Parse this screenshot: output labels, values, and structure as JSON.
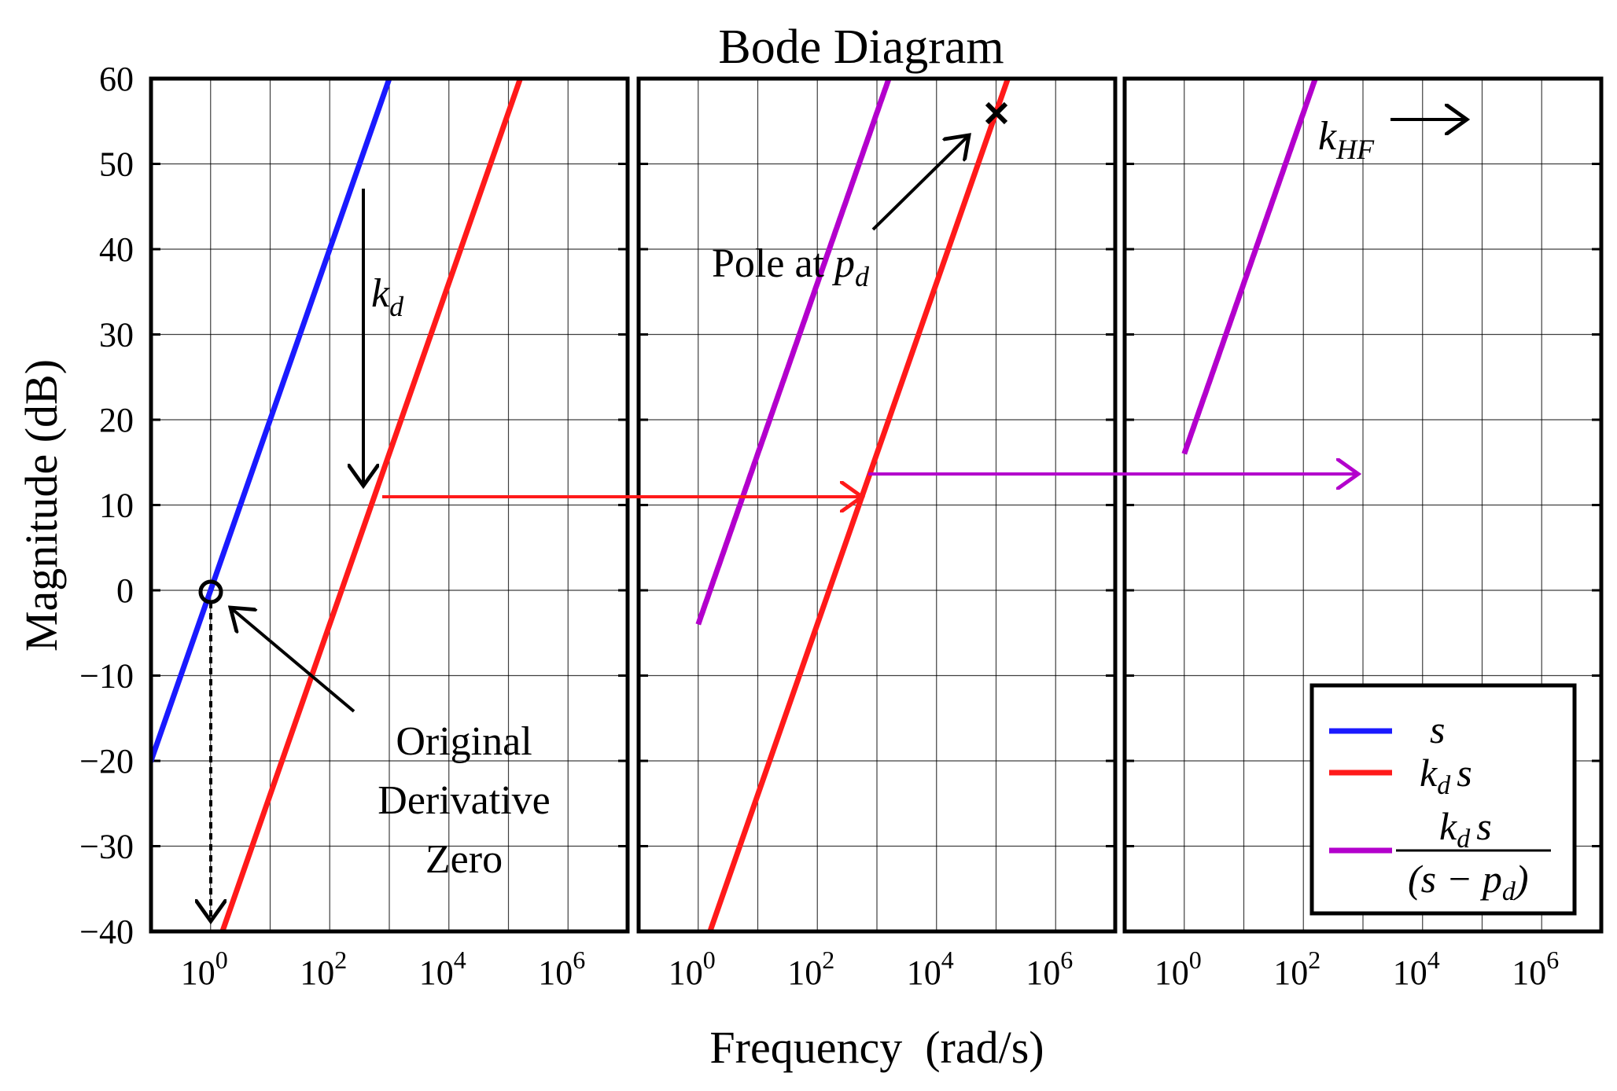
{
  "chart_data": {
    "type": "line",
    "title": "Bode Diagram",
    "xlabel": "Frequency  (rad/s)",
    "ylabel": "Magnitude (dB)",
    "x_scale": "log",
    "xlim": [
      0.1,
      10000000
    ],
    "ylim": [
      -40,
      60
    ],
    "grid": true,
    "yticks": [
      "60",
      "50",
      "40",
      "30",
      "20",
      "10",
      "0",
      "−10",
      "−20",
      "−30",
      "−40"
    ],
    "ytick_values": [
      60,
      50,
      40,
      30,
      20,
      10,
      0,
      -10,
      -20,
      -30,
      -40
    ],
    "xticks": [
      {
        "base": "10",
        "exp": "0"
      },
      {
        "base": "10",
        "exp": "2"
      },
      {
        "base": "10",
        "exp": "4"
      },
      {
        "base": "10",
        "exp": "6"
      }
    ],
    "xtick_values": [
      1,
      100,
      10000,
      1000000
    ],
    "series_colors": {
      "s": "#1a1aff",
      "kds": "#ff1a1a",
      "filtered": "#b300cc"
    },
    "legend": {
      "placement": "bottom-right of third panel",
      "s": {
        "main": "s"
      },
      "kds": {
        "k": "k",
        "d": "d",
        "s": "s"
      },
      "filtered": {
        "k": "k",
        "d": "d",
        "s": "s",
        "den_open": "(s − ",
        "p": "p",
        "den_close": ")"
      }
    },
    "panels": [
      {
        "lines": [
          {
            "series": "s",
            "x": [
              0.1,
              1000
            ],
            "y": [
              -20,
              60
            ]
          },
          {
            "series": "kds",
            "x": [
              1.58,
              158000
            ],
            "y": [
              -40,
              60
            ]
          }
        ]
      },
      {
        "lines": [
          {
            "series": "kds",
            "x": [
              1.58,
              158000
            ],
            "y": [
              -40,
              60
            ]
          },
          {
            "series": "filtered",
            "kds_gain": -4,
            "pole": 100000,
            "x_range": [
              1,
              10000000
            ]
          }
        ]
      },
      {
        "lines": [
          {
            "series": "filtered",
            "kds_gain": -4,
            "pole": 100000,
            "shift_decades": 1,
            "x_range": [
              1,
              10000000
            ]
          }
        ]
      }
    ],
    "annotations": {
      "kd": {
        "k": "k",
        "sub": "d"
      },
      "pole": {
        "text": "Pole at ",
        "p": "p",
        "sub": "d"
      },
      "khf": {
        "k": "k",
        "sub": "HF"
      },
      "zero": [
        "Original",
        "Derivative",
        "Zero"
      ]
    }
  }
}
